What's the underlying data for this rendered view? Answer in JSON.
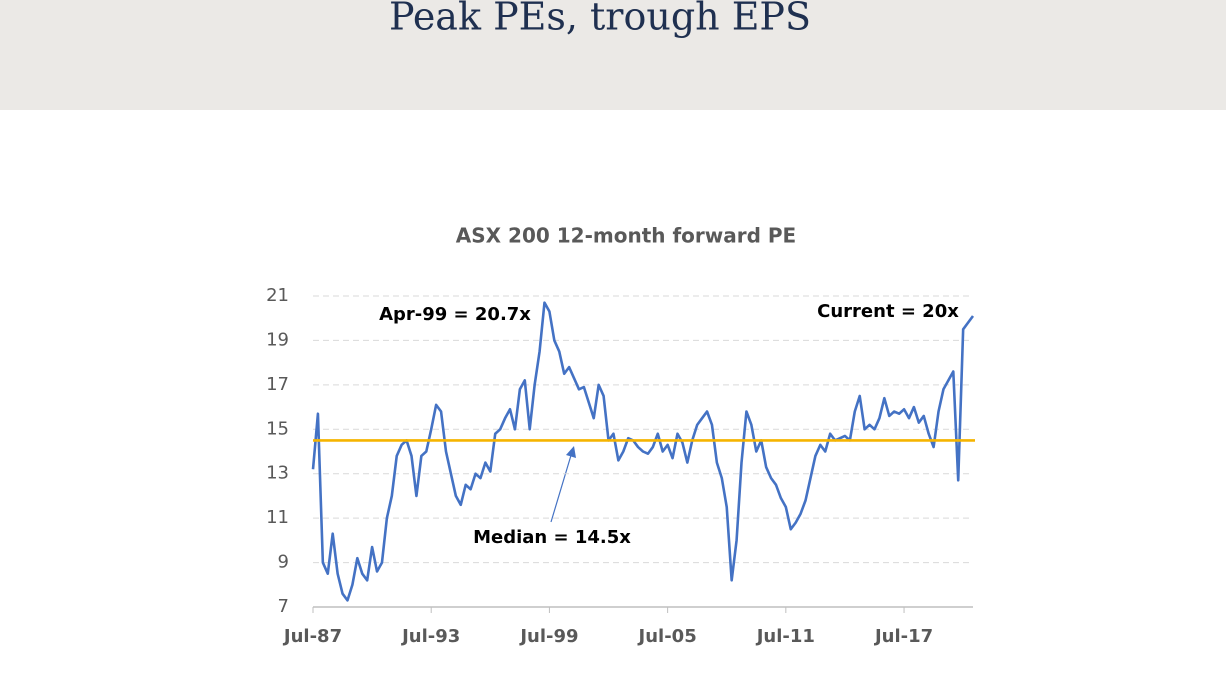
{
  "header": {
    "title": "Peak PEs, trough EPS"
  },
  "chart_data": {
    "type": "line",
    "title": "ASX 200 12-month forward PE",
    "categories": [
      "Jul-87",
      null,
      null,
      null,
      null,
      null,
      null,
      null,
      null,
      null,
      null,
      null,
      null,
      null,
      null,
      null,
      null,
      null,
      null,
      null,
      null,
      null,
      null,
      null,
      "Jul-93",
      null,
      null,
      null,
      null,
      null,
      null,
      null,
      null,
      null,
      null,
      null,
      null,
      null,
      null,
      null,
      null,
      null,
      null,
      null,
      null,
      null,
      null,
      null,
      "Jul-99",
      null,
      null,
      null,
      null,
      null,
      null,
      null,
      null,
      null,
      null,
      null,
      null,
      null,
      null,
      null,
      null,
      null,
      null,
      null,
      null,
      null,
      null,
      null,
      "Jul-05",
      null,
      null,
      null,
      null,
      null,
      null,
      null,
      null,
      null,
      null,
      null,
      null,
      null,
      null,
      null,
      null,
      null,
      null,
      null,
      null,
      null,
      null,
      null,
      "Jul-11",
      null,
      null,
      null,
      null,
      null,
      null,
      null,
      null,
      null,
      null,
      null,
      null,
      null,
      null,
      null,
      null,
      null,
      null,
      null,
      null,
      null,
      null,
      null,
      "Jul-17",
      null,
      null,
      null,
      null,
      null,
      null,
      null,
      null,
      null,
      null,
      null,
      null,
      null,
      null
    ],
    "values": [
      13.2,
      15.7,
      9.0,
      8.5,
      10.3,
      8.5,
      7.6,
      7.3,
      8.0,
      9.2,
      8.5,
      8.2,
      9.7,
      8.6,
      9.0,
      11.0,
      12.0,
      13.8,
      14.3,
      14.5,
      13.8,
      12.0,
      13.8,
      14.0,
      15.0,
      16.1,
      15.8,
      14.0,
      13.0,
      12.0,
      11.6,
      12.5,
      12.3,
      13.0,
      12.8,
      13.5,
      13.1,
      14.8,
      15.0,
      15.5,
      15.9,
      15.0,
      16.8,
      17.2,
      15.0,
      17.0,
      18.5,
      20.7,
      20.3,
      19.0,
      18.5,
      17.5,
      17.8,
      17.3,
      16.8,
      16.9,
      16.2,
      15.5,
      17.0,
      16.5,
      14.5,
      14.8,
      13.6,
      14.0,
      14.6,
      14.5,
      14.2,
      14.0,
      13.9,
      14.2,
      14.8,
      14.0,
      14.3,
      13.7,
      14.8,
      14.4,
      13.5,
      14.5,
      15.2,
      15.5,
      15.8,
      15.2,
      13.5,
      12.8,
      11.5,
      8.2,
      10.0,
      13.5,
      15.8,
      15.2,
      14.0,
      14.5,
      13.3,
      12.8,
      12.5,
      11.9,
      11.5,
      10.5,
      10.8,
      11.2,
      11.8,
      12.8,
      13.8,
      14.3,
      14.0,
      14.8,
      14.5,
      14.6,
      14.7,
      14.5,
      15.8,
      16.5,
      15.0,
      15.2,
      15.0,
      15.5,
      16.4,
      15.6,
      15.8,
      15.7,
      15.9,
      15.5,
      16.0,
      15.3,
      15.6,
      14.8,
      14.2,
      15.8,
      16.8,
      17.2,
      17.6,
      12.7,
      19.5,
      19.8,
      20.1
    ],
    "color": "#4472c4",
    "ylim": [
      7,
      21
    ],
    "yticks": [
      7,
      9,
      11,
      13,
      15,
      17,
      19,
      21
    ],
    "grid": true,
    "reference_line": {
      "value": 14.5,
      "color": "#f5b400"
    },
    "annotations": [
      "Apr-99 = 20.7x",
      "Current = 20x",
      "Median = 14.5x"
    ]
  }
}
